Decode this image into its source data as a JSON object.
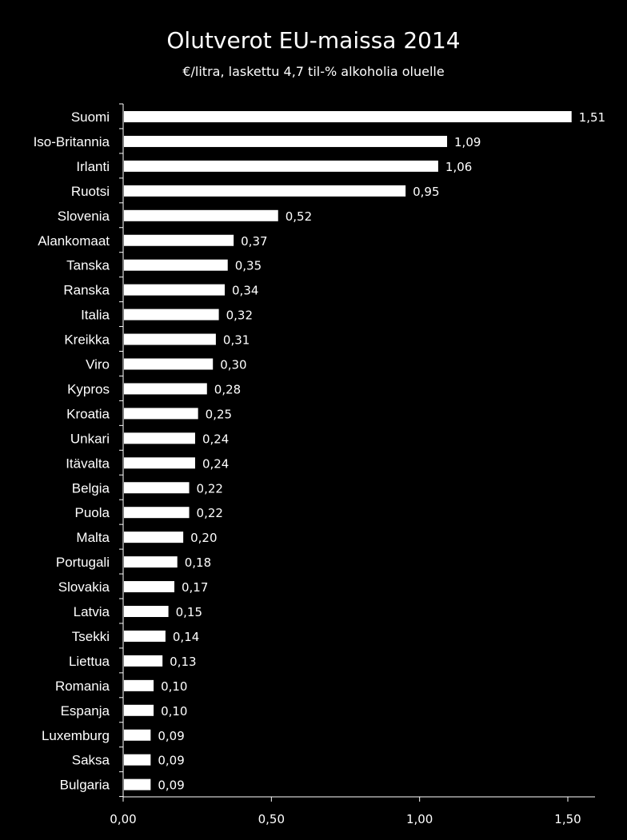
{
  "chart_data": {
    "type": "bar",
    "orientation": "horizontal",
    "title": "Olutverot EU-maissa 2014",
    "subtitle": "€/litra, laskettu 4,7 til-% alkoholia oluelle",
    "categories": [
      "Suomi",
      "Iso-Britannia",
      "Irlanti",
      "Ruotsi",
      "Slovenia",
      "Alankomaat",
      "Tanska",
      "Ranska",
      "Italia",
      "Kreikka",
      "Viro",
      "Kypros",
      "Kroatia",
      "Unkari",
      "Itävalta",
      "Belgia",
      "Puola",
      "Malta",
      "Portugali",
      "Slovakia",
      "Latvia",
      "Tsekki",
      "Liettua",
      "Romania",
      "Espanja",
      "Luxemburg",
      "Saksa",
      "Bulgaria"
    ],
    "values": [
      1.51,
      1.09,
      1.06,
      0.95,
      0.52,
      0.37,
      0.35,
      0.34,
      0.32,
      0.31,
      0.3,
      0.28,
      0.25,
      0.24,
      0.24,
      0.22,
      0.22,
      0.2,
      0.18,
      0.17,
      0.15,
      0.14,
      0.13,
      0.1,
      0.1,
      0.09,
      0.09,
      0.09
    ],
    "value_labels": [
      "1,51",
      "1,09",
      "1,06",
      "0,95",
      "0,52",
      "0,37",
      "0,35",
      "0,34",
      "0,32",
      "0,31",
      "0,30",
      "0,28",
      "0,25",
      "0,24",
      "0,24",
      "0,22",
      "0,22",
      "0,20",
      "0,18",
      "0,17",
      "0,15",
      "0,14",
      "0,13",
      "0,10",
      "0,10",
      "0,09",
      "0,09",
      "0,09"
    ],
    "xticks": [
      0,
      0.5,
      1.0,
      1.5
    ],
    "xtick_labels": [
      "0,00",
      "0,50",
      "1,00",
      "1,50"
    ],
    "xlim": [
      0,
      1.5
    ],
    "grid": false,
    "legend": "none",
    "colors": {
      "background": "#000000",
      "bar": "#ffffff",
      "text": "#ffffff",
      "axis": "#ffffff"
    }
  }
}
